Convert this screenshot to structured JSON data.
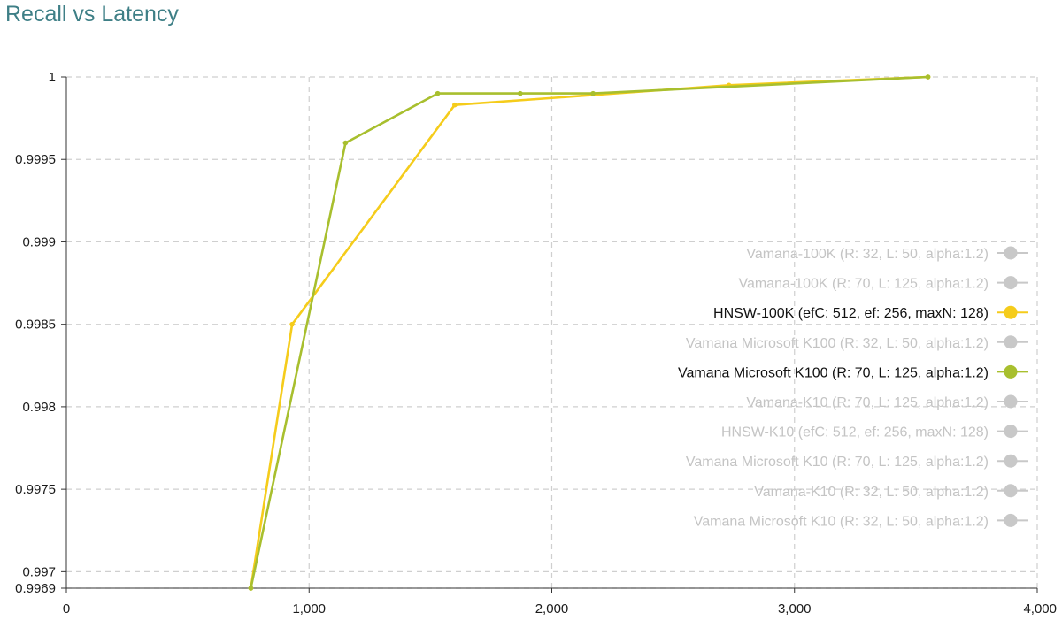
{
  "chart_data": {
    "type": "line",
    "title": "Recall vs Latency",
    "xlabel": "",
    "ylabel": "",
    "xlim": [
      0,
      4000
    ],
    "ylim": [
      0.9969,
      1.0
    ],
    "x_ticks": [
      0,
      1000,
      2000,
      3000,
      4000
    ],
    "x_tick_labels": [
      "0",
      "1,000",
      "2,000",
      "3,000",
      "4,000"
    ],
    "y_ticks": [
      0.9969,
      0.997,
      0.9975,
      0.998,
      0.9985,
      0.999,
      0.9995,
      1.0
    ],
    "y_tick_labels": [
      "0.9969",
      "0.997",
      "0.9975",
      "0.998",
      "0.9985",
      "0.999",
      "0.9995",
      "1"
    ],
    "grid": true,
    "legend_position": "right",
    "series": [
      {
        "name": "Vamana-100K (R: 32, L: 50, alpha:1.2)",
        "active": false,
        "color": "#c8c8c8",
        "points": []
      },
      {
        "name": "Vamana-100K (R: 70, L: 125, alpha:1.2)",
        "active": false,
        "color": "#c8c8c8",
        "points": []
      },
      {
        "name": "HNSW-100K (efC: 512, ef: 256, maxN: 128)",
        "active": true,
        "color": "#f5cc1b",
        "points": [
          {
            "x": 760,
            "y": 0.9969
          },
          {
            "x": 930,
            "y": 0.9985
          },
          {
            "x": 1600,
            "y": 0.99983
          },
          {
            "x": 2730,
            "y": 0.99995
          },
          {
            "x": 3550,
            "y": 1.0
          }
        ]
      },
      {
        "name": "Vamana Microsoft K100 (R: 32, L: 50, alpha:1.2)",
        "active": false,
        "color": "#c8c8c8",
        "points": []
      },
      {
        "name": "Vamana Microsoft K100 (R: 70, L: 125, alpha:1.2)",
        "active": true,
        "color": "#a8bf2e",
        "points": [
          {
            "x": 760,
            "y": 0.9969
          },
          {
            "x": 1150,
            "y": 0.9996
          },
          {
            "x": 1530,
            "y": 0.9999
          },
          {
            "x": 1870,
            "y": 0.9999
          },
          {
            "x": 2170,
            "y": 0.9999
          },
          {
            "x": 3550,
            "y": 1.0
          }
        ]
      },
      {
        "name": "Vamana-K10 (R: 70, L: 125, alpha:1.2)",
        "active": false,
        "color": "#c8c8c8",
        "points": []
      },
      {
        "name": "HNSW-K10 (efC: 512, ef: 256, maxN: 128)",
        "active": false,
        "color": "#c8c8c8",
        "points": []
      },
      {
        "name": "Vamana Microsoft K10 (R: 70, L: 125, alpha:1.2)",
        "active": false,
        "color": "#c8c8c8",
        "points": []
      },
      {
        "name": "Vamana-K10 (R: 32, L: 50, alpha:1.2)",
        "active": false,
        "color": "#c8c8c8",
        "points": []
      },
      {
        "name": "Vamana Microsoft K10 (R: 32, L: 50, alpha:1.2)",
        "active": false,
        "color": "#c8c8c8",
        "points": []
      }
    ]
  }
}
